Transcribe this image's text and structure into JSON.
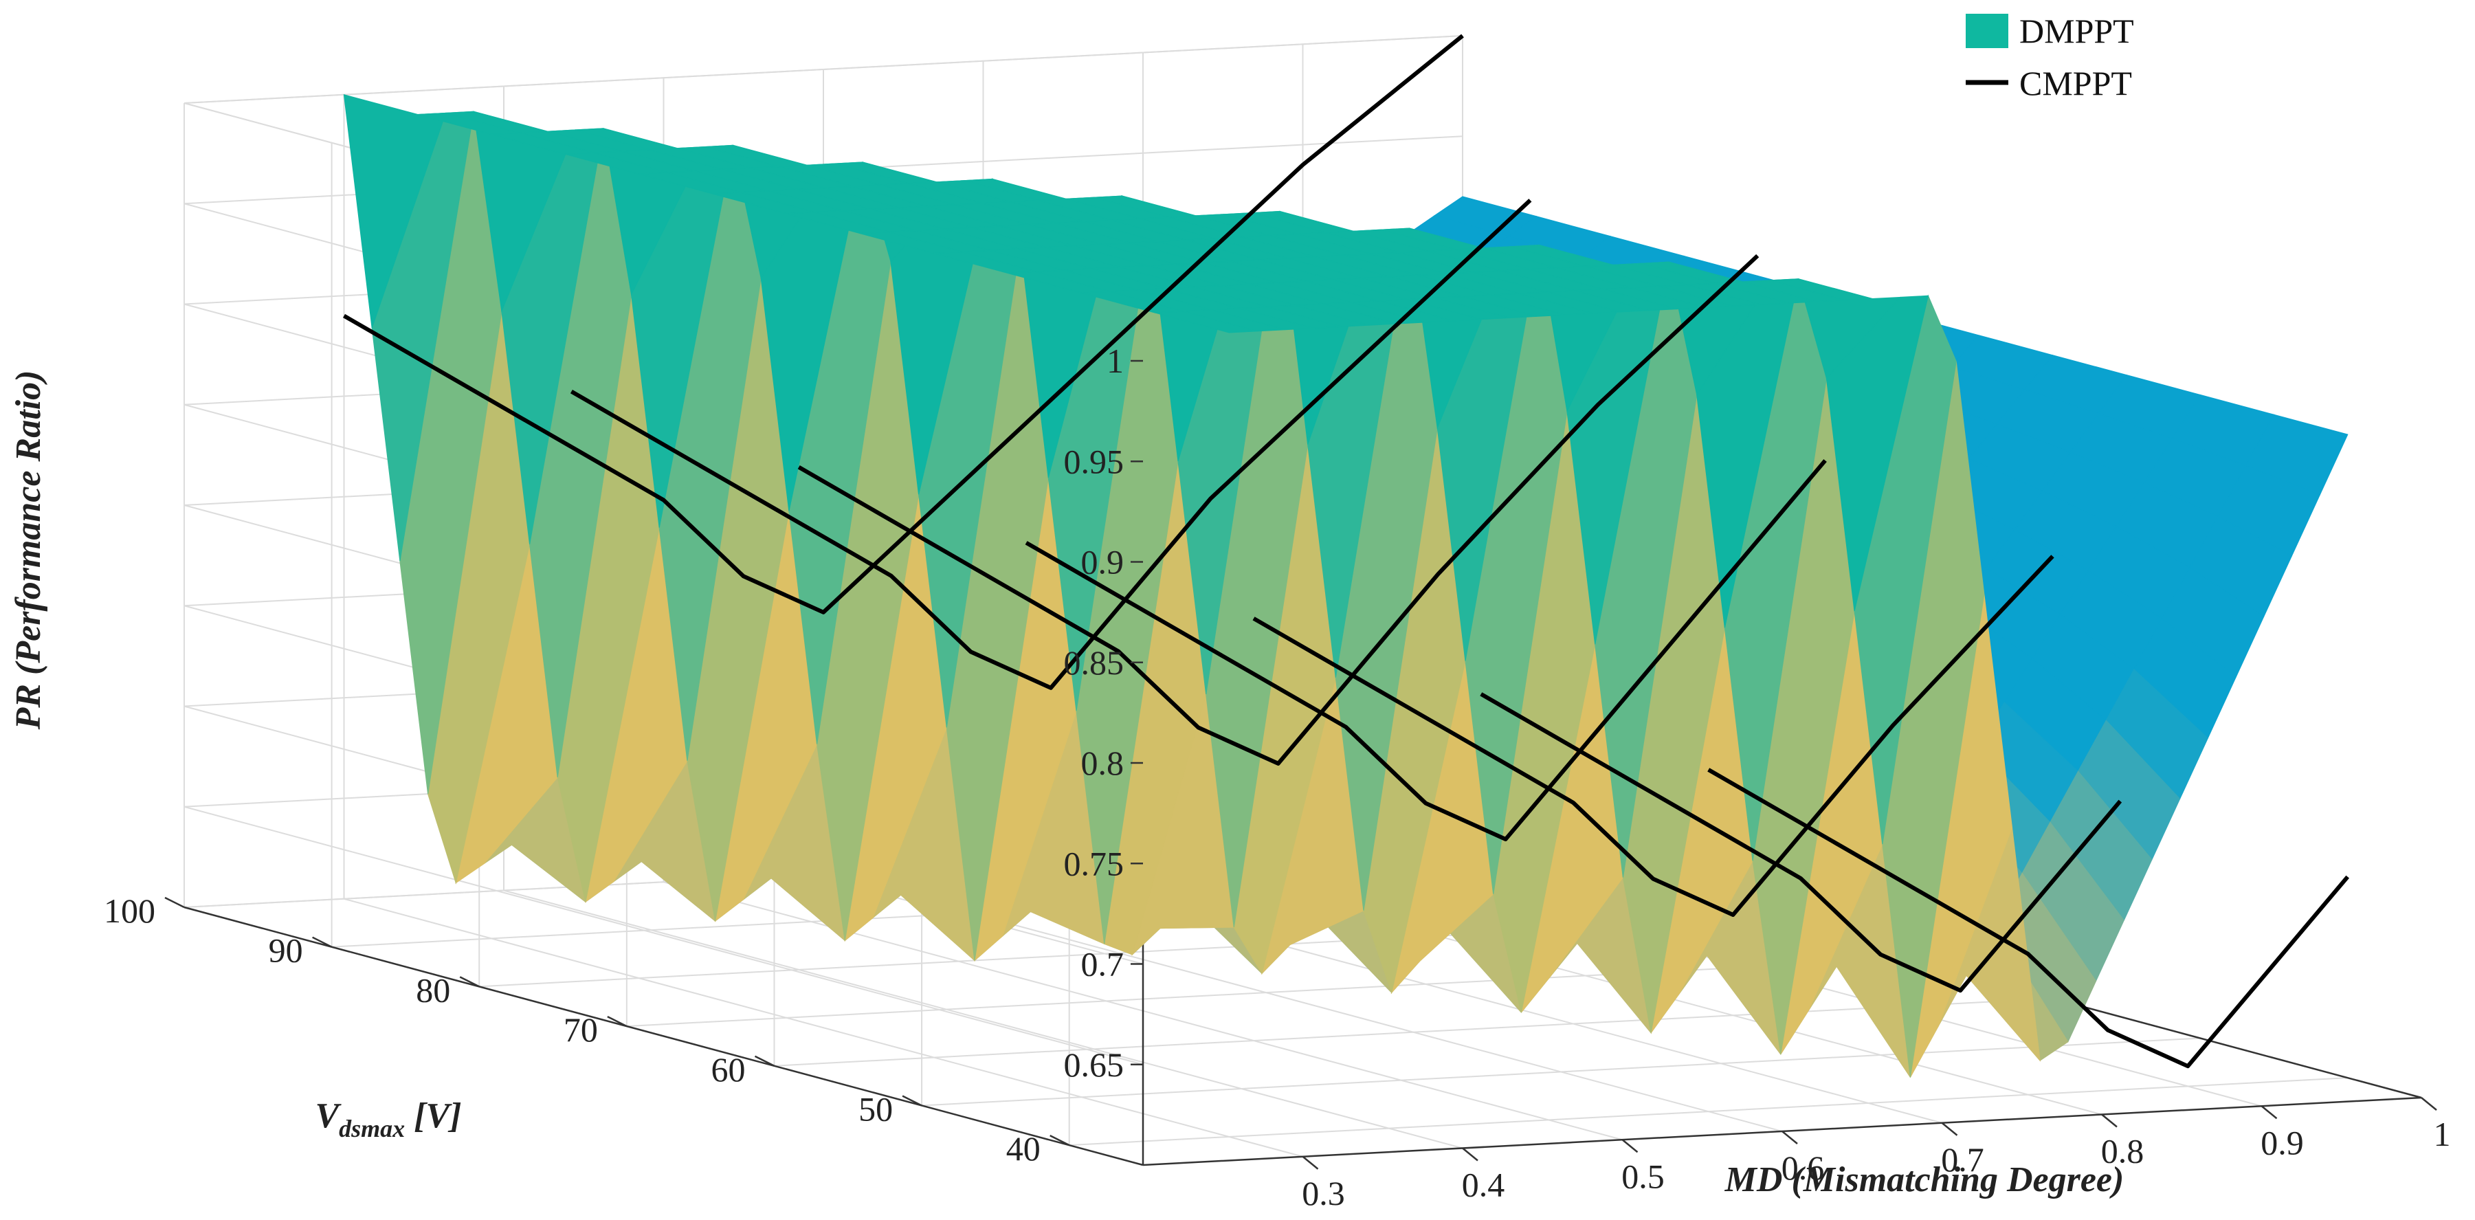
{
  "chart_data": {
    "type": "surface",
    "title": "",
    "x": {
      "label": "MD (Mismatching Degree)",
      "range": [
        0.2,
        1.0
      ],
      "ticks": [
        0.3,
        0.4,
        0.5,
        0.6,
        0.7,
        0.8,
        0.9,
        1
      ],
      "tick_labels": [
        "0.3",
        "0.4",
        "0.5",
        "0.6",
        "0.7",
        "0.8",
        "0.9",
        "1"
      ]
    },
    "y": {
      "label_main": "V",
      "label_sub": "dsmax",
      "label_unit": " [V]",
      "range": [
        35,
        100
      ],
      "ticks": [
        40,
        50,
        60,
        70,
        80,
        90,
        100
      ],
      "tick_labels": [
        "40",
        "50",
        "60",
        "70",
        "80",
        "90",
        "100"
      ]
    },
    "z": {
      "label": "PR (Performance Ratio)",
      "range": [
        0.6,
        1.0
      ],
      "ticks": [
        0.65,
        0.7,
        0.75,
        0.8,
        0.85,
        0.9,
        0.95,
        1
      ],
      "tick_labels": [
        "0.65",
        "0.7",
        "0.75",
        "0.8",
        "0.85",
        "0.9",
        "0.95",
        "1"
      ]
    },
    "grid": true,
    "legend_position": "top-right",
    "legend": [
      {
        "name": "DMPPT",
        "color": "#0fb8a0",
        "type": "surface"
      },
      {
        "name": "CMPPT",
        "color": "#000000",
        "type": "line"
      }
    ],
    "dmppt_surface": {
      "md": [
        0.3,
        1.0
      ],
      "vdsmax": [
        40,
        100
      ],
      "pr_at_md_1": 0.92,
      "threshold_md_at_vdsmax_100": 0.3,
      "threshold_md_at_vdsmax_40": 0.75,
      "min_pr": 0.6,
      "colors": {
        "flat": "#0fb5a2",
        "valley": "#dcc065",
        "slope": "#0aa2cf"
      }
    },
    "cmppt_series": [
      {
        "vdsmax": 100,
        "md": [
          0.3,
          0.4,
          0.5,
          0.55,
          0.6,
          0.7,
          0.8,
          0.9,
          1.0
        ],
        "pr": [
          0.89,
          0.84,
          0.79,
          0.75,
          0.73,
          0.8,
          0.87,
          0.94,
          1.0
        ]
      },
      {
        "vdsmax": 90,
        "md": [
          0.35,
          0.45,
          0.55,
          0.6,
          0.65,
          0.75,
          0.85,
          0.95
        ],
        "pr": [
          0.87,
          0.82,
          0.77,
          0.73,
          0.71,
          0.8,
          0.87,
          0.94
        ]
      },
      {
        "vdsmax": 80,
        "md": [
          0.4,
          0.5,
          0.6,
          0.65,
          0.7,
          0.8,
          0.9,
          1.0
        ],
        "pr": [
          0.85,
          0.8,
          0.75,
          0.71,
          0.69,
          0.78,
          0.86,
          0.93
        ]
      },
      {
        "vdsmax": 70,
        "md": [
          0.45,
          0.55,
          0.65,
          0.7,
          0.75,
          0.85,
          0.95
        ],
        "pr": [
          0.83,
          0.78,
          0.73,
          0.69,
          0.67,
          0.76,
          0.85
        ]
      },
      {
        "vdsmax": 60,
        "md": [
          0.5,
          0.6,
          0.7,
          0.75,
          0.8,
          0.9,
          1.0
        ],
        "pr": [
          0.81,
          0.76,
          0.71,
          0.67,
          0.65,
          0.74,
          0.82
        ]
      },
      {
        "vdsmax": 50,
        "md": [
          0.55,
          0.65,
          0.75,
          0.8,
          0.85,
          0.95
        ],
        "pr": [
          0.79,
          0.74,
          0.69,
          0.65,
          0.63,
          0.72
        ]
      },
      {
        "vdsmax": 40,
        "md": [
          0.6,
          0.7,
          0.8,
          0.85,
          0.9,
          1.0
        ],
        "pr": [
          0.77,
          0.72,
          0.67,
          0.63,
          0.61,
          0.7
        ]
      }
    ]
  }
}
